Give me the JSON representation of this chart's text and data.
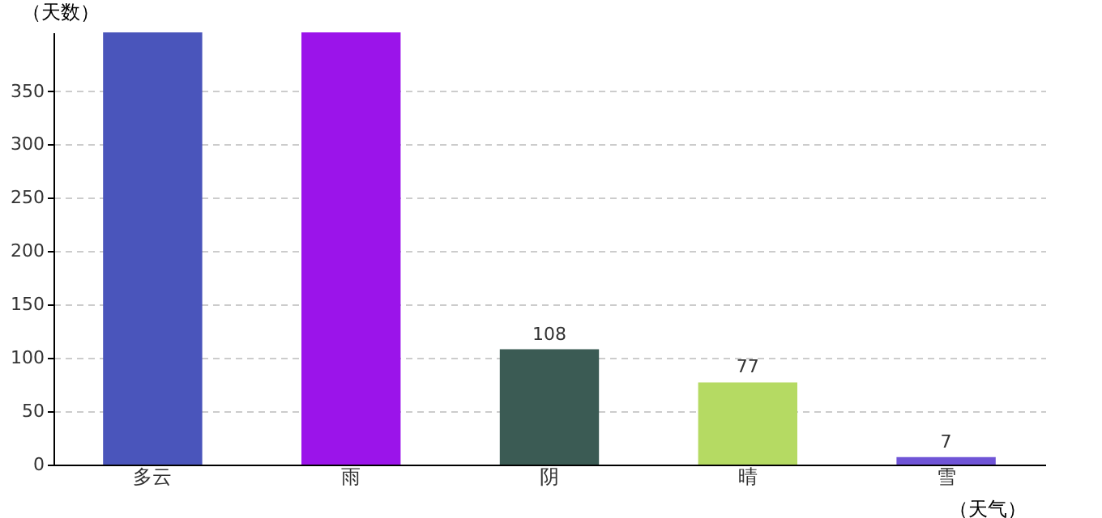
{
  "chart_data": {
    "type": "bar",
    "xlabel": "（天气）",
    "ylabel": "（天数）",
    "categories": [
      "多云",
      "雨",
      "阴",
      "晴",
      "雪"
    ],
    "values": [
      405,
      405,
      108,
      77,
      7
    ],
    "colors": [
      "#4a55bb",
      "#9b14ea",
      "#3b5b54",
      "#b5da63",
      "#6f54d6"
    ],
    "value_labels": [
      null,
      null,
      "108",
      "77",
      "7"
    ],
    "ylim": [
      0,
      405
    ],
    "yticks": [
      0,
      50,
      100,
      150,
      200,
      250,
      300,
      350
    ],
    "grid": "y"
  }
}
